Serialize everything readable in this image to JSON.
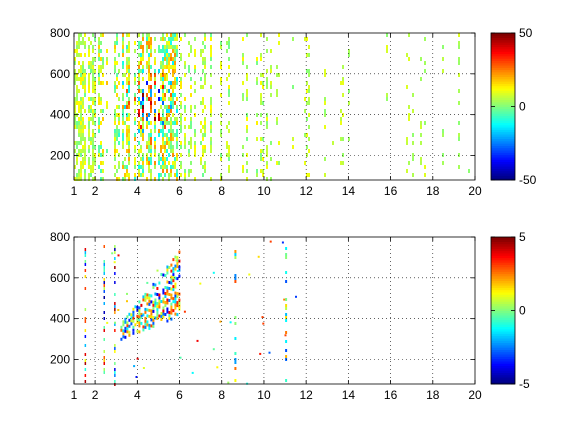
{
  "chart_data": [
    {
      "type": "heatmap",
      "title": "",
      "xlabel": "",
      "ylabel": "",
      "xlim": [
        1,
        20
      ],
      "ylim": [
        80,
        800
      ],
      "x_ticks": [
        1,
        2,
        4,
        6,
        8,
        10,
        12,
        14,
        16,
        18,
        20
      ],
      "y_ticks": [
        200,
        400,
        600,
        800
      ],
      "grid": true,
      "colorbar": {
        "min": -50,
        "max": 50,
        "ticks": [
          -50,
          0,
          50
        ],
        "colormap": "jet"
      },
      "density_bands": [
        {
          "x_range": [
            1,
            2
          ],
          "density": 0.85,
          "spread": 8
        },
        {
          "x_range": [
            2,
            3
          ],
          "density": 0.75,
          "spread": 12
        },
        {
          "x_range": [
            3,
            4
          ],
          "density": 0.75,
          "spread": 16
        },
        {
          "x_range": [
            4,
            6
          ],
          "density": 0.9,
          "spread": 18
        },
        {
          "x_range": [
            6,
            8
          ],
          "density": 0.55,
          "spread": 8
        },
        {
          "x_range": [
            8,
            10
          ],
          "density": 0.45,
          "spread": 8
        },
        {
          "x_range": [
            10,
            12
          ],
          "density": 0.35,
          "spread": 6
        },
        {
          "x_range": [
            12,
            20
          ],
          "density": 0.22,
          "spread": 5
        }
      ],
      "hotspot": {
        "x": 4.6,
        "y": 480,
        "peak": 40
      }
    },
    {
      "type": "heatmap",
      "title": "",
      "xlabel": "",
      "ylabel": "",
      "xlim": [
        1,
        20
      ],
      "ylim": [
        80,
        800
      ],
      "x_ticks": [
        1,
        2,
        4,
        6,
        8,
        10,
        12,
        14,
        16,
        18,
        20
      ],
      "y_ticks": [
        200,
        400,
        600,
        800
      ],
      "grid": true,
      "colorbar": {
        "min": -5,
        "max": 5,
        "ticks": [
          -5,
          0,
          5
        ],
        "colormap": "jet"
      },
      "streaks_x": [
        1.5,
        2.4,
        2.9
      ],
      "cluster": {
        "x_range": [
          3.2,
          6
        ],
        "y_range": [
          300,
          760
        ]
      },
      "columns_x": [
        8.6,
        11.0
      ]
    }
  ]
}
